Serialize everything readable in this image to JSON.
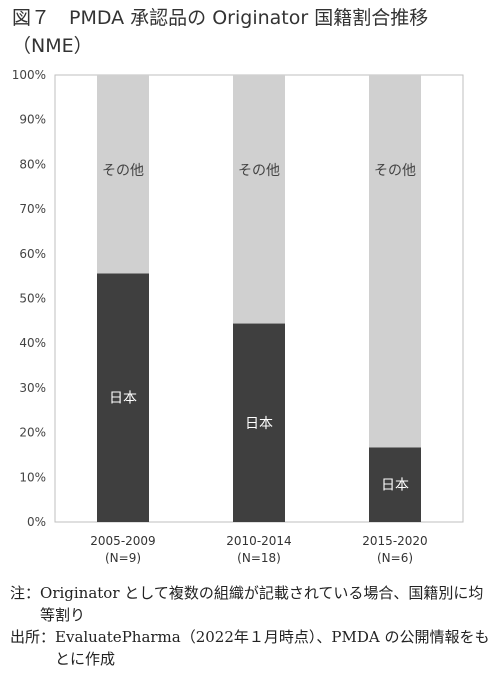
{
  "figure": {
    "title_line1": "図７　PMDA 承認品の Originator 国籍割合推移",
    "title_line2": "（NME）"
  },
  "chart_data": {
    "type": "bar",
    "stacked": true,
    "categories": [
      "2005-2009",
      "2010-2014",
      "2015-2020"
    ],
    "category_notes": [
      "(N=9)",
      "(N=18)",
      "(N=6)"
    ],
    "series": [
      {
        "name": "日本",
        "values": [
          55.6,
          44.4,
          16.7
        ],
        "color": "#3f3f3f"
      },
      {
        "name": "その他",
        "values": [
          44.4,
          55.6,
          83.3
        ],
        "color": "#d0d0d0"
      }
    ],
    "y_ticks": [
      "0%",
      "10%",
      "20%",
      "30%",
      "40%",
      "50%",
      "60%",
      "70%",
      "80%",
      "90%",
      "100%"
    ],
    "ylim": [
      0,
      100
    ],
    "grid": false,
    "legend": "none"
  },
  "notes": [
    {
      "label": "注：",
      "text": "Originator として複数の組織が記載されている場合、国籍別に均等割り"
    },
    {
      "label": "出所：",
      "text": "EvaluatePharma（2022年１月時点）、PMDA の公開情報をもとに作成"
    }
  ]
}
